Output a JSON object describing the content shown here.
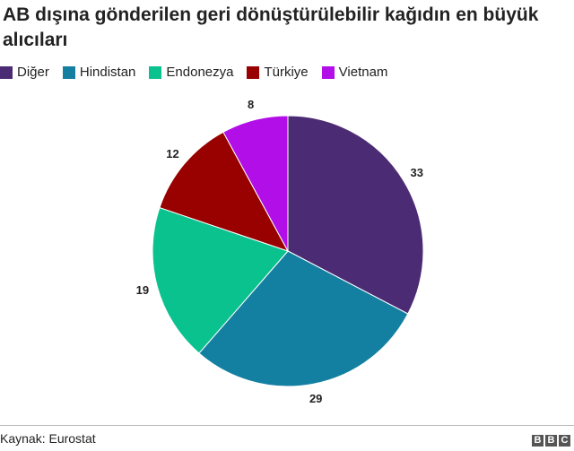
{
  "title": "AB dışına gönderilen geri dönüştürülebilir kağıdın en büyük alıcıları",
  "source": "Kaynak: Eurostat",
  "logo": [
    "B",
    "B",
    "C"
  ],
  "chart_data": {
    "type": "pie",
    "title": "AB dışına gönderilen geri dönüştürülebilir kağıdın en büyük alıcıları",
    "legend_position": "top-left",
    "categories": [
      "Diğer",
      "Hindistan",
      "Endonezya",
      "Türkiye",
      "Vietnam"
    ],
    "values": [
      33,
      29,
      19,
      12,
      8
    ],
    "colors": [
      "#4b2c74",
      "#1380a1",
      "#0ac28e",
      "#990000",
      "#b20ee8"
    ]
  }
}
